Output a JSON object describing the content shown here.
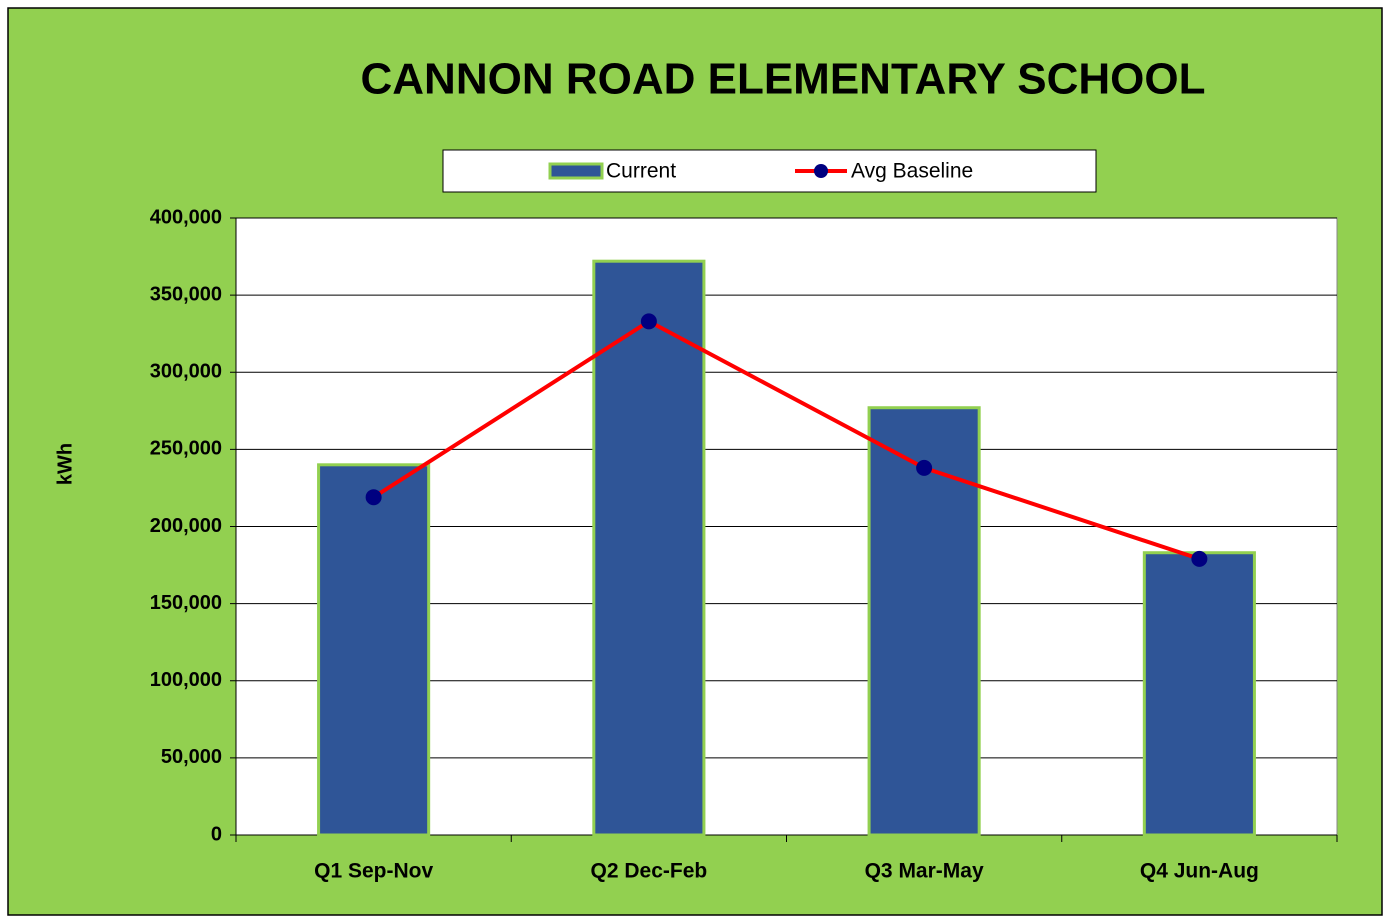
{
  "chart_data": {
    "type": "bar",
    "title": "CANNON ROAD ELEMENTARY SCHOOL",
    "y_label": "kWh",
    "categories": [
      "Q1 Sep-Nov",
      "Q2 Dec-Feb",
      "Q3 Mar-May",
      "Q4 Jun-Aug"
    ],
    "series": [
      {
        "name": "Current",
        "type": "bar",
        "color": "#2f5597",
        "edge_color": "#92d050",
        "values": [
          240000,
          372000,
          277000,
          183000
        ]
      },
      {
        "name": "Avg Baseline",
        "type": "line",
        "color": "#ff0000",
        "marker_color": "#000080",
        "values": [
          219000,
          333000,
          238000,
          179000
        ]
      }
    ],
    "ylim": [
      0,
      400000
    ],
    "yticks": [
      0,
      {
        "value": 50000,
        "label": "50,000"
      },
      {
        "value": 100000,
        "label": "100,000"
      },
      {
        "value": 150000,
        "label": "150,000"
      },
      {
        "value": 200000,
        "label": "200,000"
      },
      {
        "value": 250000,
        "label": "250,000"
      },
      {
        "value": 300000,
        "label": "300,000"
      },
      {
        "value": 350000,
        "label": "350,000"
      },
      {
        "value": 400000,
        "label": "400,000"
      }
    ],
    "grid": true,
    "legend": "top",
    "background": "#92d050",
    "plot_background": "#ffffff"
  }
}
